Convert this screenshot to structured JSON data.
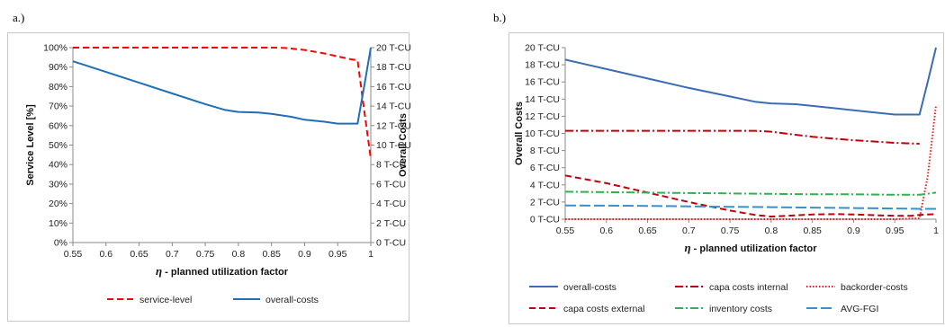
{
  "panel_a_label": "a.)",
  "panel_b_label": "b.)",
  "chart_data": [
    {
      "type": "line",
      "xlabel_prefix": "η",
      "xlabel": " - planned utilization  factor",
      "ylabel_left": "Service Level [%]",
      "ylabel_right": "Overall Costs",
      "x_ticks": [
        "0.55",
        "0.6",
        "0.65",
        "0.7",
        "0.75",
        "0.8",
        "0.85",
        "0.9",
        "0.95",
        "1"
      ],
      "y_left_ticks": [
        "0%",
        "10%",
        "20%",
        "30%",
        "40%",
        "50%",
        "60%",
        "70%",
        "80%",
        "90%",
        "100%"
      ],
      "y_right_ticks": [
        "0 T-CU",
        "2 T-CU",
        "4 T-CU",
        "6 T-CU",
        "8 T-CU",
        "10 T-CU",
        "12 T-CU",
        "14 T-CU",
        "16 T-CU",
        "18 T-CU",
        "20 T-CU"
      ],
      "xlim": [
        0.55,
        1.0
      ],
      "ylim_left": [
        0,
        100
      ],
      "ylim_right": [
        0,
        20
      ],
      "legend_placement": "bottom",
      "series": [
        {
          "name": "service-level",
          "axis": "left",
          "color": "#ff0000",
          "dash": "dashed",
          "x": [
            0.55,
            0.6,
            0.65,
            0.7,
            0.75,
            0.8,
            0.85,
            0.87,
            0.9,
            0.93,
            0.95,
            0.97,
            0.98,
            0.99,
            1.0
          ],
          "y": [
            100,
            100,
            100,
            100,
            100,
            100,
            100,
            99.8,
            98.8,
            97,
            95.5,
            94,
            93.5,
            68,
            43
          ]
        },
        {
          "name": "overall-costs",
          "axis": "right",
          "color": "#1f6fb8",
          "dash": "solid",
          "x": [
            0.55,
            0.6,
            0.65,
            0.7,
            0.75,
            0.78,
            0.8,
            0.83,
            0.85,
            0.88,
            0.9,
            0.93,
            0.95,
            0.97,
            0.98,
            0.99,
            1.0
          ],
          "y": [
            18.6,
            17.5,
            16.4,
            15.3,
            14.2,
            13.6,
            13.4,
            13.35,
            13.2,
            12.9,
            12.6,
            12.4,
            12.2,
            12.2,
            12.2,
            16,
            20
          ]
        }
      ]
    },
    {
      "type": "line",
      "xlabel_prefix": "η",
      "xlabel": " - planned utilization  factor",
      "ylabel": "Overall Costs",
      "x_ticks": [
        "0.55",
        "0.6",
        "0.65",
        "0.7",
        "0.75",
        "0.8",
        "0.85",
        "0.9",
        "0.95",
        "1"
      ],
      "y_ticks": [
        "0 T-CU",
        "2 T-CU",
        "4 T-CU",
        "6 T-CU",
        "8 T-CU",
        "10 T-CU",
        "12 T-CU",
        "14 T-CU",
        "16 T-CU",
        "18 T-CU",
        "20 T-CU"
      ],
      "xlim": [
        0.55,
        1.0
      ],
      "ylim": [
        0,
        20
      ],
      "legend_placement": "bottom",
      "series": [
        {
          "name": "overall-costs",
          "color": "#3a6db5",
          "dash": "solid",
          "x": [
            0.55,
            0.6,
            0.65,
            0.7,
            0.75,
            0.78,
            0.8,
            0.83,
            0.85,
            0.88,
            0.9,
            0.93,
            0.95,
            0.97,
            0.98,
            0.99,
            1.0
          ],
          "y": [
            18.6,
            17.5,
            16.4,
            15.3,
            14.3,
            13.7,
            13.5,
            13.4,
            13.2,
            12.9,
            12.7,
            12.4,
            12.2,
            12.2,
            12.2,
            16,
            20
          ]
        },
        {
          "name": "capa costs internal",
          "color": "#c0000a",
          "dash": "dashdot",
          "x": [
            0.55,
            0.6,
            0.65,
            0.7,
            0.75,
            0.78,
            0.8,
            0.85,
            0.9,
            0.95,
            0.98
          ],
          "y": [
            10.3,
            10.3,
            10.3,
            10.3,
            10.3,
            10.3,
            10.2,
            9.6,
            9.2,
            8.9,
            8.8
          ]
        },
        {
          "name": "backorder-costs",
          "color": "#e0201a",
          "dash": "dotted",
          "x": [
            0.55,
            0.6,
            0.65,
            0.7,
            0.75,
            0.8,
            0.85,
            0.9,
            0.95,
            0.98,
            0.99,
            1.0
          ],
          "y": [
            0,
            0,
            0,
            0,
            0,
            0,
            0,
            0,
            0,
            0.1,
            5,
            13.3
          ]
        },
        {
          "name": "capa costs external",
          "color": "#c0000a",
          "dash": "dashed",
          "x": [
            0.55,
            0.6,
            0.65,
            0.7,
            0.75,
            0.78,
            0.8,
            0.83,
            0.85,
            0.88,
            0.9,
            0.93,
            0.95,
            0.97,
            0.98,
            1.0
          ],
          "y": [
            5.1,
            4.2,
            3.1,
            2.0,
            1.0,
            0.5,
            0.3,
            0.45,
            0.55,
            0.6,
            0.55,
            0.45,
            0.4,
            0.4,
            0.5,
            0.6
          ]
        },
        {
          "name": "inventory costs",
          "color": "#2fb34a",
          "dash": "dashdot",
          "x": [
            0.55,
            0.6,
            0.65,
            0.7,
            0.75,
            0.8,
            0.85,
            0.9,
            0.95,
            0.98,
            1.0
          ],
          "y": [
            3.2,
            3.15,
            3.1,
            3.05,
            3.0,
            2.95,
            2.9,
            2.9,
            2.85,
            2.85,
            3.1
          ]
        },
        {
          "name": "AVG-FGI",
          "color": "#3a8fc8",
          "dash": "longdash",
          "x": [
            0.55,
            0.6,
            0.65,
            0.7,
            0.75,
            0.8,
            0.85,
            0.9,
            0.95,
            0.98,
            1.0
          ],
          "y": [
            1.6,
            1.58,
            1.55,
            1.5,
            1.45,
            1.4,
            1.35,
            1.3,
            1.25,
            1.2,
            1.2
          ]
        }
      ]
    }
  ]
}
